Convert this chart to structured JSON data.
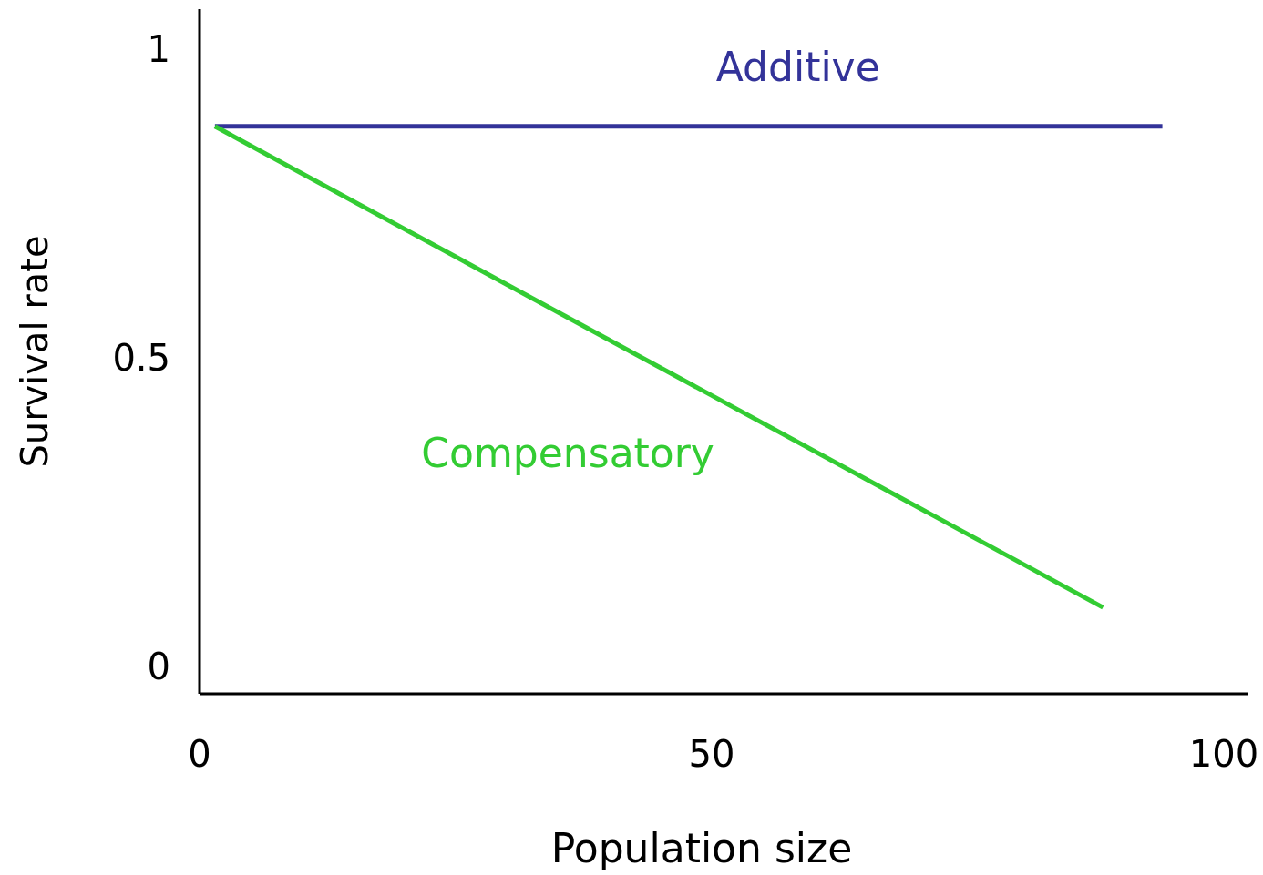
{
  "chart_data": {
    "type": "line",
    "xlabel": "Population size",
    "ylabel": "Survival rate",
    "xlim": [
      0,
      102.4
    ],
    "xticks": [
      0,
      50,
      100
    ],
    "ylim": [
      -0.04,
      1.07
    ],
    "yticks": [
      0,
      0.5,
      1
    ],
    "grid": false,
    "marker": "none",
    "line_style": "solid",
    "series": [
      {
        "name": "Additive",
        "color": "#333399",
        "x": [
          1.5,
          94
        ],
        "values": [
          0.88,
          0.88
        ]
      },
      {
        "name": "Compensatory",
        "color": "#33cc33",
        "x": [
          1.5,
          88.2
        ],
        "values": [
          0.88,
          0.1
        ]
      }
    ]
  }
}
